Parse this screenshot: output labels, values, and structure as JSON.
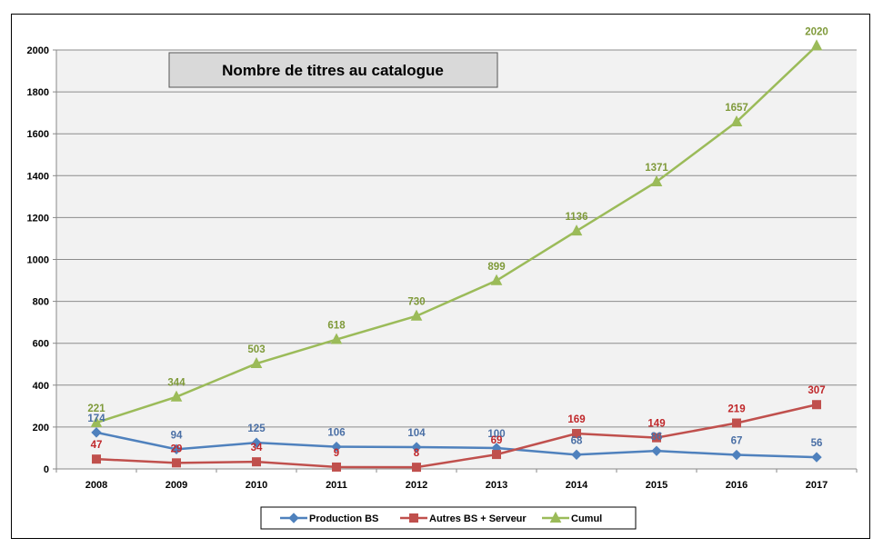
{
  "chart_data": {
    "type": "line",
    "title": "Nombre de titres au catalogue",
    "xlabel": "",
    "ylabel": "",
    "categories": [
      "2008",
      "2009",
      "2010",
      "2011",
      "2012",
      "2013",
      "2014",
      "2015",
      "2016",
      "2017"
    ],
    "ylim": [
      0,
      2000
    ],
    "yticks": [
      0,
      200,
      400,
      600,
      800,
      1000,
      1200,
      1400,
      1600,
      1800,
      2000
    ],
    "grid": true,
    "legend_position": "bottom",
    "series": [
      {
        "name": "Production BS",
        "color": "#4F81BD",
        "marker": "diamond",
        "values": [
          174,
          94,
          125,
          106,
          104,
          100,
          68,
          86,
          67,
          56
        ]
      },
      {
        "name": "Autres BS + Serveur",
        "color": "#C0504D",
        "marker": "square",
        "values": [
          47,
          29,
          34,
          9,
          8,
          69,
          169,
          149,
          219,
          307
        ]
      },
      {
        "name": "Cumul",
        "color": "#9BBB59",
        "marker": "triangle",
        "values": [
          221,
          344,
          503,
          618,
          730,
          899,
          1136,
          1371,
          1657,
          2020
        ]
      }
    ]
  }
}
